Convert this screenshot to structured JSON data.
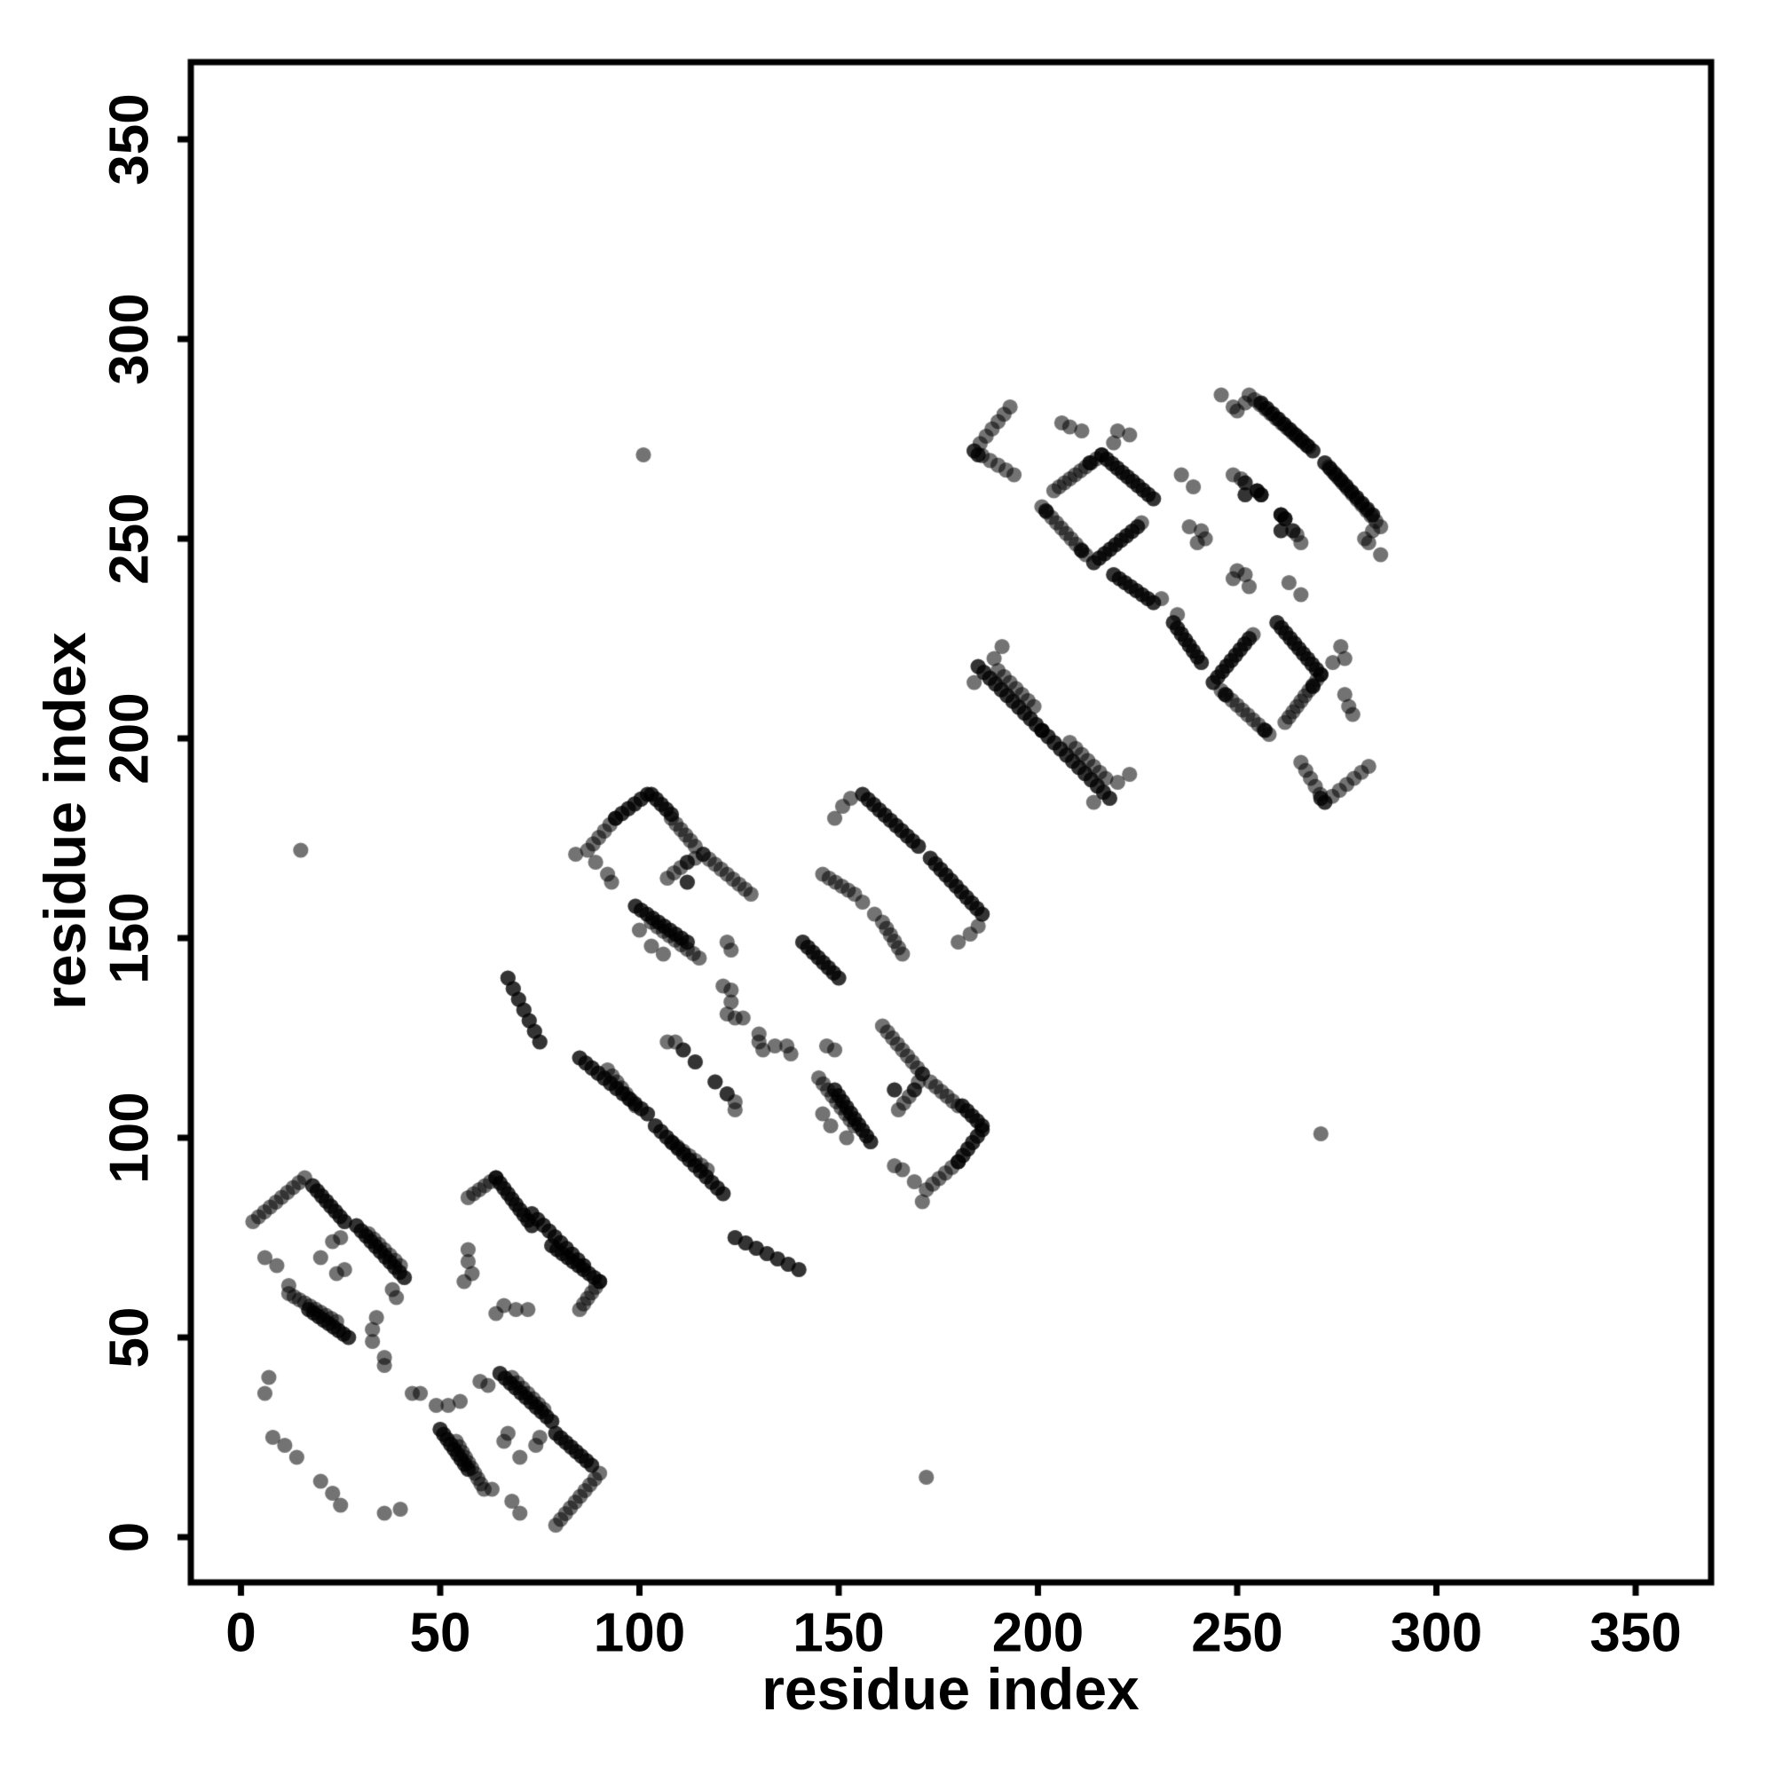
{
  "chart_data": {
    "type": "scatter",
    "title": "",
    "xlabel": "residue index",
    "ylabel": "residue index",
    "xlim": [
      -13,
      369
    ],
    "ylim": [
      -13,
      369
    ],
    "xticks": [
      0,
      50,
      100,
      150,
      200,
      250,
      300,
      350
    ],
    "yticks": [
      0,
      50,
      100,
      150,
      200,
      250,
      300,
      350
    ],
    "grid": false,
    "legend": null,
    "marker": {
      "shape": "circle",
      "radius_px": 8.6,
      "color": "#000000",
      "alpha": 0.55
    },
    "symmetric_about_diagonal": true,
    "notes": "Residue-residue contact map; runs are sequences of n overlapping markers from f to t (residue indices), w = darkness weight, m:false = run crosses the diagonal and is not mirrored. All other runs/points are also drawn mirrored (y,x).",
    "runs": [
      {
        "f": [
          3,
          79
        ],
        "t": [
          16,
          90
        ],
        "n": 10,
        "w": 1
      },
      {
        "f": [
          18,
          88
        ],
        "t": [
          26,
          79
        ],
        "n": 8,
        "w": 2
      },
      {
        "f": [
          29,
          78
        ],
        "t": [
          41,
          65
        ],
        "n": 11,
        "w": 2
      },
      {
        "f": [
          32,
          76
        ],
        "t": [
          40,
          68
        ],
        "n": 7,
        "w": 1
      },
      {
        "f": [
          12,
          61
        ],
        "t": [
          24,
          54
        ],
        "n": 10,
        "w": 1
      },
      {
        "f": [
          17,
          57
        ],
        "t": [
          27,
          50
        ],
        "n": 9,
        "w": 2
      },
      {
        "f": [
          57,
          85
        ],
        "t": [
          64,
          90
        ],
        "n": 6,
        "w": 1
      },
      {
        "f": [
          64,
          90
        ],
        "t": [
          73,
          78
        ],
        "n": 10,
        "w": 2
      },
      {
        "f": [
          73,
          81
        ],
        "t": [
          86,
          68
        ],
        "n": 10,
        "w": 2,
        "m": false
      },
      {
        "f": [
          75,
          124
        ],
        "t": [
          67,
          140
        ],
        "n": 7,
        "w": 2
      },
      {
        "f": [
          85,
          120
        ],
        "t": [
          102,
          106
        ],
        "n": 12,
        "w": 2,
        "m": false
      },
      {
        "f": [
          104,
          103
        ],
        "t": [
          121,
          86
        ],
        "n": 13,
        "w": 2,
        "m": false
      },
      {
        "f": [
          108,
          99
        ],
        "t": [
          117,
          92
        ],
        "n": 7,
        "w": 1
      },
      {
        "f": [
          87,
          172
        ],
        "t": [
          94,
          180
        ],
        "n": 6,
        "w": 1
      },
      {
        "f": [
          94,
          180
        ],
        "t": [
          102,
          186
        ],
        "n": 6,
        "w": 2
      },
      {
        "f": [
          103,
          186
        ],
        "t": [
          108,
          181
        ],
        "n": 5,
        "w": 2
      },
      {
        "f": [
          108,
          180
        ],
        "t": [
          114,
          173
        ],
        "n": 6,
        "w": 1
      },
      {
        "f": [
          107,
          165
        ],
        "t": [
          112,
          169
        ],
        "n": 4,
        "w": 1
      },
      {
        "f": [
          112,
          169
        ],
        "t": [
          116,
          171
        ],
        "n": 3,
        "w": 1
      },
      {
        "f": [
          116,
          171
        ],
        "t": [
          128,
          161
        ],
        "n": 9,
        "w": 1
      },
      {
        "f": [
          99,
          158
        ],
        "t": [
          112,
          149
        ],
        "n": 10,
        "w": 2
      },
      {
        "f": [
          103,
          154
        ],
        "t": [
          115,
          145
        ],
        "n": 9,
        "w": 1
      },
      {
        "f": [
          141,
          149
        ],
        "t": [
          150,
          140
        ],
        "n": 8,
        "w": 2,
        "m": false
      },
      {
        "f": [
          146,
          166
        ],
        "t": [
          154,
          161
        ],
        "n": 6,
        "w": 1
      },
      {
        "f": [
          156,
          186
        ],
        "t": [
          170,
          173
        ],
        "n": 11,
        "w": 2
      },
      {
        "f": [
          185,
          218
        ],
        "t": [
          201,
          202
        ],
        "n": 12,
        "w": 2,
        "m": false
      },
      {
        "f": [
          201,
          202
        ],
        "t": [
          218,
          185
        ],
        "n": 12,
        "w": 2,
        "m": false
      },
      {
        "f": [
          190,
          217
        ],
        "t": [
          199,
          208
        ],
        "n": 7,
        "w": 1
      },
      {
        "f": [
          193,
          283
        ],
        "t": [
          184,
          272
        ],
        "n": 7,
        "w": 1
      },
      {
        "f": [
          184,
          272
        ],
        "t": [
          194,
          266
        ],
        "n": 6,
        "w": 1
      },
      {
        "f": [
          204,
          262
        ],
        "t": [
          216,
          271
        ],
        "n": 10,
        "w": 1
      },
      {
        "f": [
          216,
          271
        ],
        "t": [
          229,
          260
        ],
        "n": 11,
        "w": 2
      },
      {
        "f": [
          201,
          258
        ],
        "t": [
          212,
          246
        ],
        "n": 10,
        "w": 1
      },
      {
        "f": [
          214,
          244
        ],
        "t": [
          225,
          253
        ],
        "n": 9,
        "w": 2
      },
      {
        "f": [
          219,
          241
        ],
        "t": [
          229,
          234
        ],
        "n": 8,
        "w": 2
      },
      {
        "f": [
          253,
          286
        ],
        "t": [
          268,
          273
        ],
        "n": 12,
        "w": 1
      },
      {
        "f": [
          256,
          284
        ],
        "t": [
          269,
          272
        ],
        "n": 10,
        "w": 2
      }
    ],
    "points": [
      {
        "p": [
          6,
          70
        ]
      },
      {
        "p": [
          9,
          68
        ]
      },
      {
        "p": [
          20,
          70
        ]
      },
      {
        "p": [
          23,
          74
        ]
      },
      {
        "p": [
          25,
          75
        ]
      },
      {
        "p": [
          24,
          66
        ]
      },
      {
        "p": [
          26,
          67
        ]
      },
      {
        "p": [
          38,
          62
        ]
      },
      {
        "p": [
          39,
          60
        ]
      },
      {
        "p": [
          12,
          63
        ]
      },
      {
        "p": [
          34,
          55
        ]
      },
      {
        "p": [
          33,
          52
        ]
      },
      {
        "p": [
          33,
          49
        ]
      },
      {
        "p": [
          36,
          45
        ]
      },
      {
        "p": [
          36,
          43
        ]
      },
      {
        "p": [
          57,
          72
        ]
      },
      {
        "p": [
          57,
          69
        ]
      },
      {
        "p": [
          58,
          66
        ]
      },
      {
        "p": [
          56,
          64
        ]
      },
      {
        "p": [
          8,
          25
        ]
      },
      {
        "p": [
          11,
          23
        ]
      },
      {
        "p": [
          14,
          20
        ]
      },
      {
        "p": [
          36,
          6
        ]
      },
      {
        "p": [
          40,
          7
        ]
      },
      {
        "p": [
          84,
          171
        ]
      },
      {
        "p": [
          89,
          169
        ]
      },
      {
        "p": [
          92,
          166
        ]
      },
      {
        "p": [
          93,
          164
        ]
      },
      {
        "p": [
          112,
          164
        ],
        "w": 2
      },
      {
        "p": [
          100,
          152
        ]
      },
      {
        "p": [
          103,
          148
        ]
      },
      {
        "p": [
          106,
          146
        ]
      },
      {
        "p": [
          122,
          149
        ]
      },
      {
        "p": [
          123,
          147
        ]
      },
      {
        "p": [
          121,
          138
        ]
      },
      {
        "p": [
          123,
          137
        ]
      },
      {
        "p": [
          122,
          131
        ]
      },
      {
        "p": [
          124,
          130
        ]
      },
      {
        "p": [
          126,
          130
        ]
      },
      {
        "p": [
          123,
          134
        ]
      },
      {
        "p": [
          156,
          159
        ]
      },
      {
        "p": [
          149,
          180
        ]
      },
      {
        "p": [
          151,
          183
        ]
      },
      {
        "p": [
          153,
          185
        ]
      },
      {
        "p": [
          107,
          124
        ]
      },
      {
        "p": [
          111,
          122
        ],
        "w": 2
      },
      {
        "p": [
          119,
          114
        ],
        "w": 2
      },
      {
        "p": [
          124,
          109
        ]
      },
      {
        "p": [
          184,
          214
        ]
      },
      {
        "p": [
          189,
          220
        ]
      },
      {
        "p": [
          191,
          223
        ]
      },
      {
        "p": [
          185,
          271
        ],
        "w": 2
      },
      {
        "p": [
          206,
          279
        ]
      },
      {
        "p": [
          208,
          278
        ]
      },
      {
        "p": [
          211,
          277
        ]
      },
      {
        "p": [
          219,
          274
        ]
      },
      {
        "p": [
          220,
          277
        ]
      },
      {
        "p": [
          223,
          276
        ]
      },
      {
        "p": [
          213,
          269
        ],
        "w": 2
      },
      {
        "p": [
          202,
          257
        ],
        "w": 2
      },
      {
        "p": [
          211,
          247
        ],
        "w": 2
      },
      {
        "p": [
          226,
          254
        ]
      },
      {
        "p": [
          231,
          235
        ]
      },
      {
        "p": [
          238,
          253
        ]
      },
      {
        "p": [
          241,
          252
        ]
      },
      {
        "p": [
          242,
          250
        ]
      },
      {
        "p": [
          240,
          249
        ]
      },
      {
        "p": [
          236,
          266
        ]
      },
      {
        "p": [
          239,
          263
        ]
      },
      {
        "p": [
          249,
          266
        ]
      },
      {
        "p": [
          252,
          264
        ],
        "w": 2
      },
      {
        "p": [
          255,
          262
        ],
        "w": 3
      },
      {
        "p": [
          261,
          256
        ],
        "w": 3
      },
      {
        "p": [
          261,
          252
        ],
        "w": 2
      },
      {
        "p": [
          265,
          251
        ]
      },
      {
        "p": [
          250,
          282
        ]
      },
      {
        "p": [
          252,
          284
        ]
      },
      {
        "p": [
          283,
          249
        ]
      },
      {
        "p": [
          286,
          246
        ]
      },
      {
        "p": [
          101,
          271
        ]
      },
      {
        "p": [
          15,
          172
        ]
      }
    ]
  }
}
